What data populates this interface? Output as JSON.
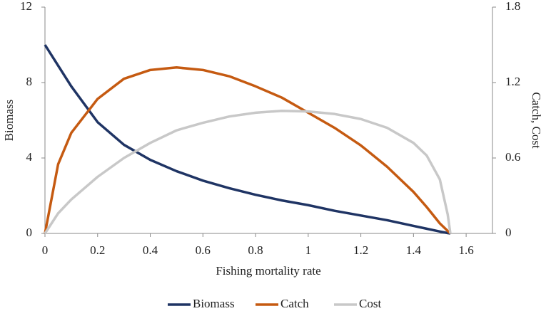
{
  "chart_data": {
    "type": "line",
    "x_label": "Fishing mortality rate",
    "y_label": "Biomass",
    "y2_label": "Catch, Cost",
    "x": [
      0,
      0.05,
      0.1,
      0.2,
      0.3,
      0.4,
      0.5,
      0.6,
      0.7,
      0.8,
      0.9,
      1.0,
      1.1,
      1.2,
      1.3,
      1.4,
      1.45,
      1.5,
      1.53,
      1.54
    ],
    "series": [
      {
        "name": "Biomass",
        "color": "#1f3464",
        "values": [
          10,
          8.9,
          7.8,
          5.9,
          4.7,
          3.9,
          3.3,
          2.8,
          2.4,
          2.05,
          1.75,
          1.5,
          1.2,
          0.95,
          0.7,
          0.4,
          0.25,
          0.1,
          0.02,
          0
        ]
      },
      {
        "name": "Catch",
        "color": "#c55a11",
        "axis": "y2",
        "values": [
          0,
          0.55,
          0.8,
          1.07,
          1.23,
          1.3,
          1.32,
          1.3,
          1.25,
          1.17,
          1.08,
          0.96,
          0.84,
          0.7,
          0.53,
          0.33,
          0.21,
          0.08,
          0.02,
          0
        ]
      },
      {
        "name": "Cost",
        "color": "#c8c8c8",
        "axis": "y2",
        "values": [
          0,
          0.16,
          0.27,
          0.45,
          0.6,
          0.72,
          0.82,
          0.88,
          0.93,
          0.96,
          0.975,
          0.97,
          0.95,
          0.91,
          0.84,
          0.72,
          0.62,
          0.43,
          0.15,
          0
        ]
      }
    ],
    "xlim": [
      0,
      1.7
    ],
    "xticks": [
      0,
      0.2,
      0.4,
      0.6,
      0.8,
      1,
      1.2,
      1.4,
      1.6
    ],
    "ylim": [
      0,
      12
    ],
    "yticks": [
      0,
      4,
      8,
      12
    ],
    "y2lim": [
      0,
      1.8
    ],
    "y2ticks": [
      0,
      0.6,
      1.2,
      1.8
    ],
    "legend": "bottom"
  }
}
